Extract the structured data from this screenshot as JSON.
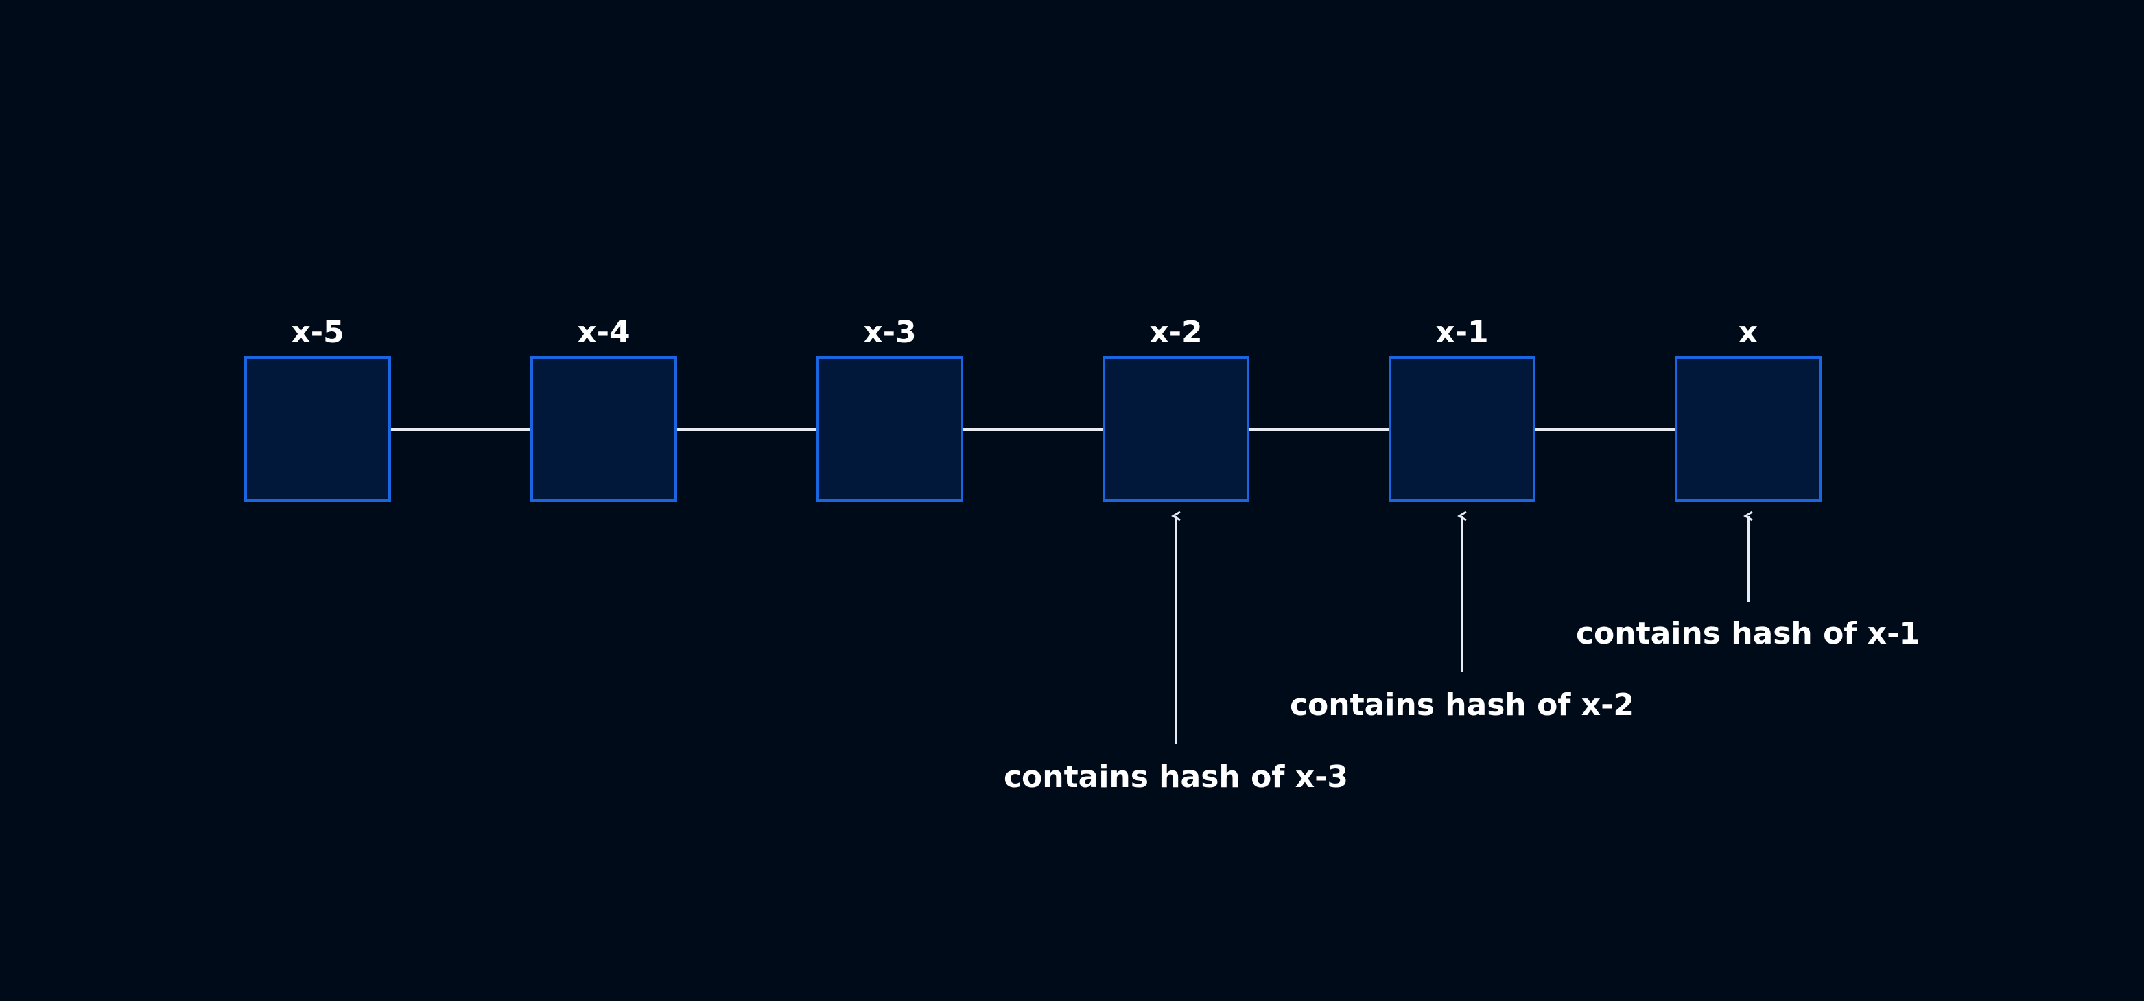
{
  "colors": {
    "background": "#000b1a",
    "block_fill": "#02183a",
    "block_stroke": "#1a66e0",
    "connector": "#e8ecf2",
    "text": "#ffffff"
  },
  "blocks": [
    {
      "label": "x-5"
    },
    {
      "label": "x-4"
    },
    {
      "label": "x-3"
    },
    {
      "label": "x-2"
    },
    {
      "label": "x-1"
    },
    {
      "label": "x"
    }
  ],
  "annotations": [
    {
      "block": "x-2",
      "text": "contains hash of x-3"
    },
    {
      "block": "x-1",
      "text": "contains hash of x-2"
    },
    {
      "block": "x",
      "text": "contains hash of x-1"
    }
  ]
}
